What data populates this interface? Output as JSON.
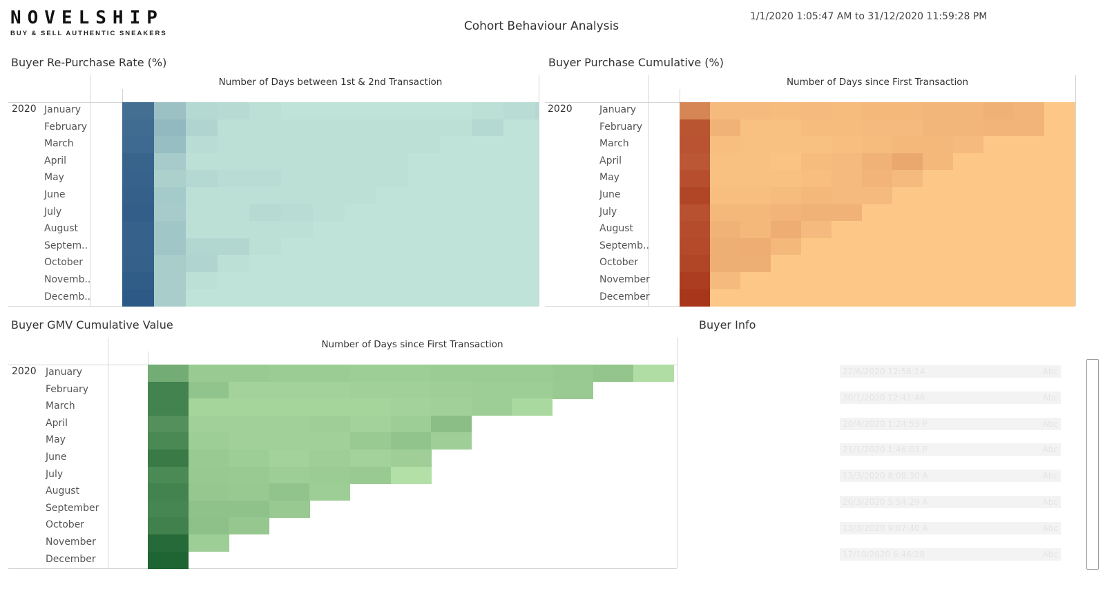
{
  "logo": {
    "name": "NOVELSHIP",
    "tagline": "BUY & SELL AUTHENTIC SNEAKERS"
  },
  "title": "Cohort Behaviour Analysis",
  "date_range": "1/1/2020 1:05:47 AM to 31/12/2020 11:59:28 PM",
  "year": "2020",
  "panels": {
    "repurchase": {
      "title": "Buyer Re-Purchase Rate (%)",
      "axis_title": "Number of Days between 1st & 2nd Transaction",
      "months": [
        "January",
        "February",
        "March",
        "April",
        "May",
        "June",
        "July",
        "August",
        "Septem..",
        "October",
        "Novemb..",
        "Decemb.."
      ]
    },
    "purchase_cumulative": {
      "title": "Buyer Purchase Cumulative (%)",
      "axis_title": "Number of Days since First Transaction",
      "months": [
        "January",
        "February",
        "March",
        "April",
        "May",
        "June",
        "July",
        "August",
        "Septemb..",
        "October",
        "November",
        "December"
      ]
    },
    "gmv_cumulative": {
      "title": "Buyer GMV Cumulative Value",
      "axis_title": "Number of Days since First Transaction",
      "months": [
        "January",
        "February",
        "March",
        "April",
        "May",
        "June",
        "July",
        "August",
        "September",
        "October",
        "November",
        "December"
      ]
    },
    "buyer_info": {
      "title": "Buyer Info",
      "rows": [
        {
          "date": "22/6/2020 12:56:14",
          "abc": "Abc"
        },
        {
          "date": "30/1/2020 12:41:46",
          "abc": "Abc"
        },
        {
          "date": "20/4/2020 1:24:53 P",
          "abc": "Abc"
        },
        {
          "date": "21/1/2020 1:46:03 P",
          "abc": "Abc"
        },
        {
          "date": "13/3/2020 8:08:30 A",
          "abc": "Abc"
        },
        {
          "date": "20/3/2020 5:54:29 A",
          "abc": "Abc"
        },
        {
          "date": "13/3/2020 9:07:40 A",
          "abc": "Abc"
        },
        {
          "date": "17/10/2020 6:46:28",
          "abc": "Abc"
        }
      ]
    }
  },
  "chart_data": [
    {
      "type": "heatmap",
      "title": "Buyer Re-Purchase Rate (%)",
      "xlabel": "Number of Days between 1st & 2nd Transaction",
      "rows": [
        "January",
        "February",
        "March",
        "April",
        "May",
        "June",
        "July",
        "August",
        "September",
        "October",
        "November",
        "December"
      ],
      "color_scale": [
        "#bfe3d8",
        "#2d5986"
      ],
      "values": [
        [
          80,
          25,
          12,
          11,
          9,
          8,
          8,
          8,
          8,
          8,
          8,
          9,
          10,
          12
        ],
        [
          82,
          30,
          14,
          9,
          9,
          9,
          9,
          9,
          9,
          9,
          9,
          12,
          8,
          8
        ],
        [
          84,
          27,
          10,
          9,
          9,
          9,
          9,
          9,
          9,
          9,
          8,
          8,
          8,
          8
        ],
        [
          88,
          19,
          9,
          9,
          9,
          9,
          9,
          9,
          9,
          8,
          8,
          8,
          8,
          8
        ],
        [
          89,
          16,
          12,
          10,
          10,
          9,
          9,
          9,
          9,
          8,
          8,
          8,
          8,
          8
        ],
        [
          91,
          20,
          9,
          9,
          9,
          9,
          9,
          9,
          8,
          8,
          8,
          8,
          8,
          8
        ],
        [
          92,
          19,
          9,
          9,
          11,
          10,
          9,
          8,
          8,
          8,
          8,
          8,
          8,
          8
        ],
        [
          90,
          22,
          9,
          9,
          9,
          9,
          8,
          8,
          8,
          8,
          8,
          8,
          8,
          8
        ],
        [
          90,
          22,
          13,
          13,
          9,
          8,
          8,
          8,
          8,
          8,
          8,
          8,
          8,
          8
        ],
        [
          91,
          18,
          14,
          9,
          8,
          8,
          8,
          8,
          8,
          8,
          8,
          8,
          8,
          8
        ],
        [
          94,
          18,
          9,
          8,
          8,
          8,
          8,
          8,
          8,
          8,
          8,
          8,
          8,
          8
        ],
        [
          96,
          18,
          8,
          8,
          8,
          8,
          8,
          8,
          8,
          8,
          8,
          8,
          8,
          8
        ]
      ]
    },
    {
      "type": "heatmap",
      "title": "Buyer Purchase Cumulative (%)",
      "xlabel": "Number of Days since First Transaction",
      "rows": [
        "January",
        "February",
        "March",
        "April",
        "May",
        "June",
        "July",
        "August",
        "September",
        "October",
        "November",
        "December"
      ],
      "color_scale": [
        "#fdc887",
        "#a8361b"
      ],
      "values": [
        [
          40,
          8,
          8,
          7,
          8,
          7,
          9,
          9,
          10,
          10,
          13,
          11,
          2,
          2
        ],
        [
          74,
          12,
          5,
          5,
          7,
          7,
          8,
          8,
          10,
          10,
          11,
          11,
          2,
          2
        ],
        [
          75,
          6,
          5,
          5,
          5,
          6,
          7,
          9,
          9,
          8,
          2,
          2,
          2,
          2
        ],
        [
          72,
          5,
          5,
          4,
          7,
          8,
          12,
          18,
          9,
          2,
          2,
          2,
          2,
          2
        ],
        [
          78,
          5,
          5,
          5,
          6,
          8,
          11,
          8,
          2,
          2,
          2,
          2,
          2,
          2
        ],
        [
          85,
          6,
          6,
          7,
          9,
          8,
          8,
          2,
          2,
          2,
          2,
          2,
          2,
          2
        ],
        [
          77,
          9,
          9,
          11,
          12,
          12,
          2,
          2,
          2,
          2,
          2,
          2,
          2,
          2
        ],
        [
          80,
          12,
          9,
          15,
          8,
          2,
          2,
          2,
          2,
          2,
          2,
          2,
          2,
          2
        ],
        [
          82,
          14,
          15,
          9,
          2,
          2,
          2,
          2,
          2,
          2,
          2,
          2,
          2,
          2
        ],
        [
          85,
          14,
          14,
          2,
          2,
          2,
          2,
          2,
          2,
          2,
          2,
          2,
          2,
          2
        ],
        [
          92,
          8,
          2,
          2,
          2,
          2,
          2,
          2,
          2,
          2,
          2,
          2,
          2,
          2
        ],
        [
          97,
          2,
          2,
          2,
          2,
          2,
          2,
          2,
          2,
          2,
          2,
          2,
          2,
          2
        ]
      ]
    },
    {
      "type": "heatmap",
      "title": "Buyer GMV Cumulative Value",
      "xlabel": "Number of Days since First Transaction",
      "rows": [
        "January",
        "February",
        "March",
        "April",
        "May",
        "June",
        "July",
        "August",
        "September",
        "October",
        "November",
        "December"
      ],
      "color_scale": [
        "#b3e0a6",
        "#1f6533"
      ],
      "values": [
        [
          38,
          18,
          18,
          17,
          17,
          16,
          16,
          17,
          17,
          17,
          19,
          21,
          8,
          null
        ],
        [
          68,
          22,
          13,
          13,
          13,
          14,
          14,
          15,
          16,
          16,
          18,
          null,
          null,
          null
        ],
        [
          68,
          12,
          12,
          12,
          12,
          12,
          13,
          14,
          16,
          10,
          null,
          null,
          null,
          null
        ],
        [
          58,
          14,
          14,
          14,
          15,
          13,
          16,
          26,
          null,
          null,
          null,
          null,
          null,
          null
        ],
        [
          64,
          16,
          14,
          14,
          14,
          18,
          22,
          15,
          null,
          null,
          null,
          null,
          null,
          null
        ],
        [
          75,
          18,
          16,
          13,
          15,
          13,
          15,
          null,
          null,
          null,
          null,
          null,
          null,
          null
        ],
        [
          63,
          19,
          18,
          16,
          17,
          18,
          7,
          null,
          null,
          null,
          null,
          null,
          null,
          null
        ],
        [
          68,
          20,
          19,
          22,
          16,
          null,
          null,
          null,
          null,
          null,
          null,
          null,
          null,
          null
        ],
        [
          66,
          23,
          23,
          19,
          null,
          null,
          null,
          null,
          null,
          null,
          null,
          null,
          null,
          null
        ],
        [
          70,
          24,
          20,
          null,
          null,
          null,
          null,
          null,
          null,
          null,
          null,
          null,
          null,
          null
        ],
        [
          88,
          16,
          null,
          null,
          null,
          null,
          null,
          null,
          null,
          null,
          null,
          null,
          null,
          null
        ],
        [
          92,
          null,
          null,
          null,
          null,
          null,
          null,
          null,
          null,
          null,
          null,
          null,
          null,
          null
        ]
      ]
    }
  ]
}
